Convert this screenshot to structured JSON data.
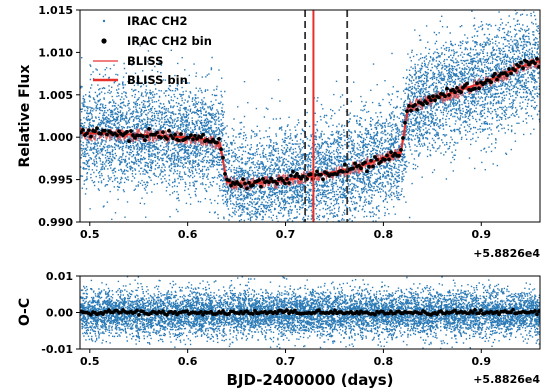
{
  "chart_data": [
    {
      "type": "scatter",
      "title": "",
      "xlabel": "",
      "ylabel": "Relative Flux",
      "xlim": [
        0.49,
        0.96
      ],
      "ylim": [
        0.99,
        1.015
      ],
      "x_offset_label": "+5.8826e4",
      "x_ticks": [
        "0.5",
        "0.6",
        "0.7",
        "0.8",
        "0.9"
      ],
      "y_ticks": [
        "0.990",
        "0.995",
        "1.000",
        "1.005",
        "1.010",
        "1.015"
      ],
      "grid": false,
      "legend_position": "top-left",
      "legend": [
        "IRAC CH2",
        "IRAC CH2 bin",
        "BLISS",
        "BLISS bin"
      ],
      "vertical_lines": [
        {
          "x": 0.72,
          "style": "dashed",
          "color": "#333333"
        },
        {
          "x": 0.7285,
          "style": "solid",
          "color": "#e8302a"
        },
        {
          "x": 0.763,
          "style": "dashed",
          "color": "#333333"
        }
      ],
      "binned_model": {
        "name": "BLISS bin",
        "x": [
          0.49,
          0.52,
          0.55,
          0.58,
          0.61,
          0.633,
          0.64,
          0.66,
          0.69,
          0.72,
          0.75,
          0.78,
          0.8,
          0.818,
          0.825,
          0.85,
          0.88,
          0.91,
          0.94,
          0.96
        ],
        "y": [
          1.0005,
          1.0004,
          1.0003,
          1.0001,
          0.9999,
          0.9993,
          0.9947,
          0.9945,
          0.9948,
          0.9953,
          0.9959,
          0.9967,
          0.9976,
          0.9982,
          1.0035,
          1.0045,
          1.0056,
          1.0068,
          1.0083,
          1.009
        ]
      },
      "colors": {
        "points": "#2c7bb6",
        "bin": "#000000",
        "model": "#e64545",
        "model_bin": "#e8302a"
      }
    },
    {
      "type": "scatter",
      "title": "",
      "xlabel": "BJD-2400000 (days)",
      "ylabel": "O-C",
      "xlim": [
        0.49,
        0.96
      ],
      "ylim": [
        -0.01,
        0.01
      ],
      "x_offset_label": "+5.8826e4",
      "x_ticks": [
        "0.5",
        "0.6",
        "0.7",
        "0.8",
        "0.9"
      ],
      "y_ticks": [
        "-0.01",
        "0.00",
        "0.01"
      ],
      "residual_level": 0.0,
      "grid": false
    }
  ]
}
